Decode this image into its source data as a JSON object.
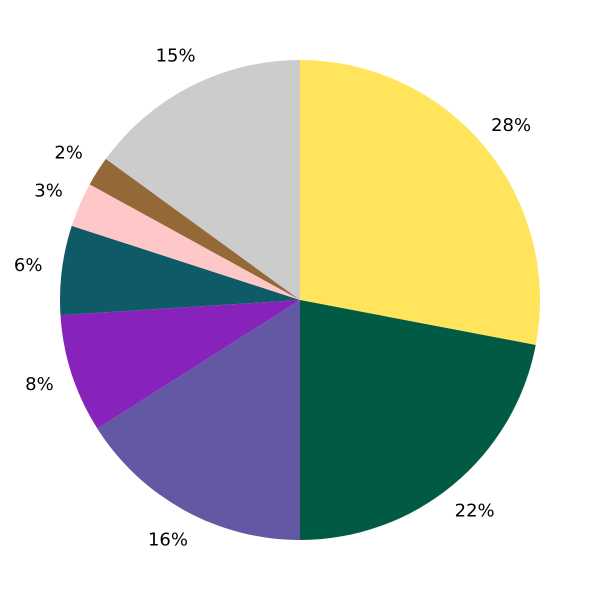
{
  "chart_data": {
    "type": "pie",
    "title": "",
    "start": "top",
    "direction": "clockwise",
    "values": [
      28,
      22,
      16,
      8,
      6,
      3,
      2,
      15
    ],
    "labels": [
      "28%",
      "22%",
      "16%",
      "8%",
      "6%",
      "3%",
      "2%",
      "15%"
    ],
    "colors": [
      "#FFE45C",
      "#005A44",
      "#6358A3",
      "#8722BA",
      "#0E5A66",
      "#FFC8C8",
      "#956937",
      "#CCCCCC"
    ]
  }
}
